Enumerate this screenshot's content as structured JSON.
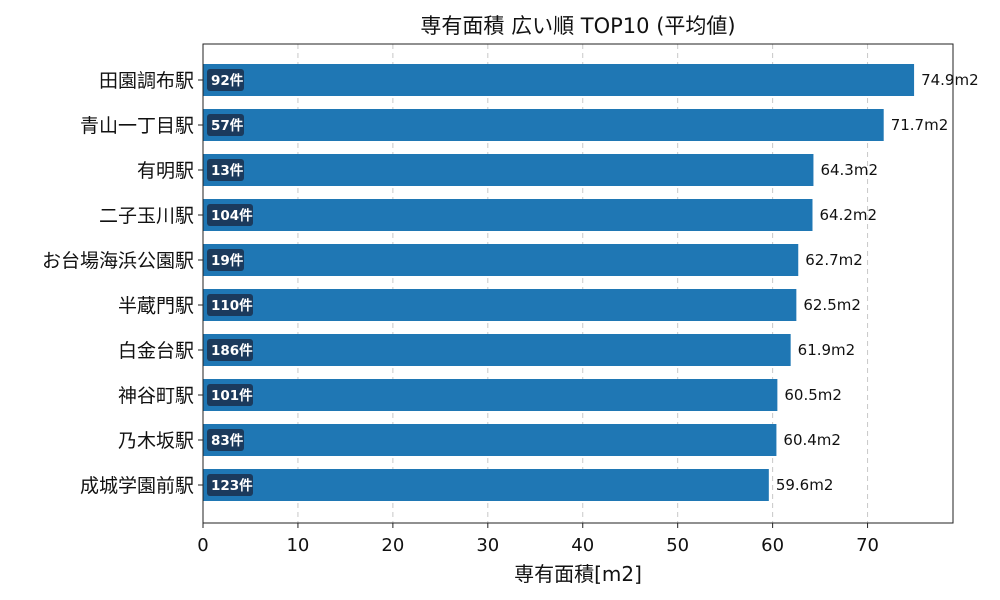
{
  "chart_data": {
    "type": "bar",
    "orientation": "horizontal",
    "title": "専有面積 広い順 TOP10 (平均値)",
    "xlabel": "専有面積[m2]",
    "ylabel": "",
    "xlim": [
      0,
      79
    ],
    "xticks": [
      0,
      10,
      20,
      30,
      40,
      50,
      60,
      70
    ],
    "grid": "x-dashed",
    "bar_color": "#1f77b4",
    "count_badge_color": "#1b3a5c",
    "value_suffix": "m2",
    "categories": [
      "田園調布駅",
      "青山一丁目駅",
      "有明駅",
      "二子玉川駅",
      "お台場海浜公園駅",
      "半蔵門駅",
      "白金台駅",
      "神谷町駅",
      "乃木坂駅",
      "成城学園前駅"
    ],
    "values": [
      74.9,
      71.7,
      64.3,
      64.2,
      62.7,
      62.5,
      61.9,
      60.5,
      60.4,
      59.6
    ],
    "value_labels": [
      "74.9m2",
      "71.7m2",
      "64.3m2",
      "64.2m2",
      "62.7m2",
      "62.5m2",
      "61.9m2",
      "60.5m2",
      "60.4m2",
      "59.6m2"
    ],
    "count_labels": [
      "92件",
      "57件",
      "13件",
      "104件",
      "19件",
      "110件",
      "186件",
      "101件",
      "83件",
      "123件"
    ]
  }
}
